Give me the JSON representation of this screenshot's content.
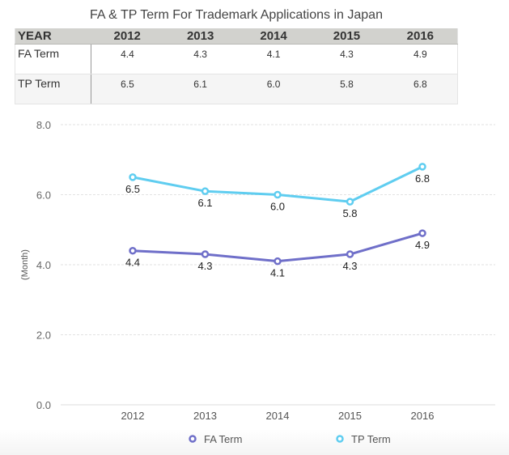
{
  "title": "FA & TP Term For Trademark Applications in Japan",
  "table": {
    "header": [
      "YEAR",
      "2012",
      "2013",
      "2014",
      "2015",
      "2016"
    ],
    "rows": [
      {
        "label": "FA Term",
        "values": [
          "4.4",
          "4.3",
          "4.1",
          "4.3",
          "4.9"
        ]
      },
      {
        "label": "TP Term",
        "values": [
          "6.5",
          "6.1",
          "6.0",
          "5.8",
          "6.8"
        ]
      }
    ]
  },
  "chart_data": {
    "type": "line",
    "title": "FA & TP Term For Trademark Applications in Japan",
    "categories": [
      "2012",
      "2013",
      "2014",
      "2015",
      "2016"
    ],
    "series": [
      {
        "name": "FA Term",
        "values": [
          4.4,
          4.3,
          4.1,
          4.3,
          4.9
        ],
        "color": "#6f6fc9"
      },
      {
        "name": "TP Term",
        "values": [
          6.5,
          6.1,
          6.0,
          5.8,
          6.8
        ],
        "color": "#5fcdf0"
      }
    ],
    "xlabel": "",
    "ylabel": "(Month)",
    "ylim": [
      0,
      8
    ],
    "yticks": [
      "0.0",
      "2.0",
      "4.0",
      "6.0",
      "8.0"
    ],
    "ytick_values": [
      0,
      2,
      4,
      6,
      8
    ],
    "grid": true,
    "legend": "bottom",
    "data_labels": true
  }
}
